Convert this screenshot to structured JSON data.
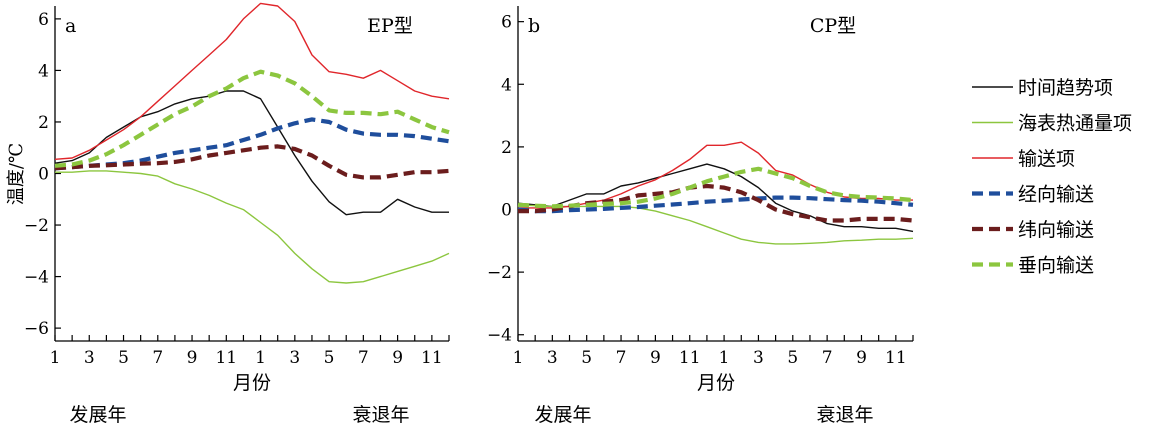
{
  "ylabel": "温度/℃",
  "xlabel": "月份",
  "year_labels": {
    "start": "发展年",
    "end": "衰退年"
  },
  "legend": [
    {
      "name": "时间趋势项",
      "color": "#111111",
      "dashed": false
    },
    {
      "name": "海表热通量项",
      "color": "#8cc63f",
      "dashed": false
    },
    {
      "name": "输送项",
      "color": "#e0262b",
      "dashed": false
    },
    {
      "name": "经向输送",
      "color": "#1f4e9c",
      "dashed": true
    },
    {
      "name": "纬向输送",
      "color": "#6b1d1d",
      "dashed": true
    },
    {
      "name": "垂向输送",
      "color": "#8cc63f",
      "dashed": true
    }
  ],
  "x_ticks": [
    "1",
    "3",
    "5",
    "7",
    "9",
    "11",
    "1",
    "3",
    "5",
    "7",
    "9",
    "11"
  ],
  "chart_data": [
    {
      "type": "line",
      "panel": "a",
      "title": "EP型",
      "ylim": [
        -6.5,
        6.5
      ],
      "yticks": [
        -6,
        -4,
        -2,
        0,
        2,
        4,
        6
      ],
      "ytick_labels": [
        "−6",
        "−4",
        "−2",
        "0",
        "2",
        "4",
        "6"
      ],
      "x_range": [
        1,
        24
      ],
      "x": [
        1,
        2,
        3,
        4,
        5,
        6,
        7,
        8,
        9,
        10,
        11,
        12,
        13,
        14,
        15,
        16,
        17,
        18,
        19,
        20,
        21,
        22,
        23,
        24
      ],
      "series": [
        {
          "name": "时间趋势项",
          "values": [
            0.4,
            0.5,
            0.8,
            1.4,
            1.8,
            2.2,
            2.4,
            2.7,
            2.9,
            3.0,
            3.2,
            3.2,
            2.9,
            1.8,
            0.7,
            -0.3,
            -1.1,
            -1.6,
            -1.5,
            -1.5,
            -1.0,
            -1.3,
            -1.5,
            -1.5
          ]
        },
        {
          "name": "海表热通量项",
          "values": [
            0.05,
            0.05,
            0.1,
            0.1,
            0.05,
            0.0,
            -0.1,
            -0.4,
            -0.6,
            -0.85,
            -1.15,
            -1.4,
            -1.9,
            -2.4,
            -3.1,
            -3.7,
            -4.2,
            -4.25,
            -4.2,
            -4.0,
            -3.8,
            -3.6,
            -3.4,
            -3.1
          ]
        },
        {
          "name": "输送项",
          "values": [
            0.55,
            0.6,
            0.9,
            1.3,
            1.7,
            2.2,
            2.8,
            3.4,
            4.0,
            4.6,
            5.2,
            6.0,
            6.6,
            6.5,
            5.9,
            4.6,
            3.95,
            3.85,
            3.7,
            4.0,
            3.6,
            3.2,
            3.0,
            2.9
          ]
        },
        {
          "name": "经向输送",
          "values": [
            0.2,
            0.25,
            0.3,
            0.35,
            0.4,
            0.5,
            0.65,
            0.8,
            0.9,
            1.0,
            1.1,
            1.3,
            1.5,
            1.75,
            1.95,
            2.1,
            2.0,
            1.7,
            1.55,
            1.5,
            1.5,
            1.45,
            1.35,
            1.25
          ]
        },
        {
          "name": "纬向输送",
          "values": [
            0.2,
            0.25,
            0.3,
            0.32,
            0.35,
            0.38,
            0.4,
            0.45,
            0.55,
            0.7,
            0.8,
            0.9,
            1.0,
            1.05,
            0.95,
            0.7,
            0.3,
            -0.05,
            -0.15,
            -0.15,
            -0.05,
            0.05,
            0.05,
            0.1
          ]
        },
        {
          "name": "垂向输送",
          "values": [
            0.3,
            0.35,
            0.5,
            0.75,
            1.1,
            1.5,
            1.9,
            2.3,
            2.6,
            3.0,
            3.3,
            3.7,
            3.95,
            3.8,
            3.5,
            3.0,
            2.45,
            2.35,
            2.35,
            2.3,
            2.4,
            2.1,
            1.8,
            1.6
          ]
        }
      ]
    },
    {
      "type": "line",
      "panel": "b",
      "title": "CP型",
      "ylim": [
        -4.2,
        6.5
      ],
      "yticks": [
        -4,
        -2,
        0,
        2,
        4,
        6
      ],
      "ytick_labels": [
        "−4",
        "−2",
        "0",
        "2",
        "4",
        "6"
      ],
      "x_range": [
        1,
        24
      ],
      "x": [
        1,
        2,
        3,
        4,
        5,
        6,
        7,
        8,
        9,
        10,
        11,
        12,
        13,
        14,
        15,
        16,
        17,
        18,
        19,
        20,
        21,
        22,
        23,
        24
      ],
      "series": [
        {
          "name": "时间趋势项",
          "values": [
            0.2,
            0.15,
            0.1,
            0.3,
            0.5,
            0.5,
            0.75,
            0.85,
            1.0,
            1.15,
            1.3,
            1.45,
            1.3,
            1.05,
            0.7,
            0.2,
            -0.05,
            -0.2,
            -0.45,
            -0.55,
            -0.55,
            -0.6,
            -0.6,
            -0.7
          ]
        },
        {
          "name": "海表热通量项",
          "values": [
            0.15,
            0.12,
            0.1,
            0.1,
            0.1,
            0.1,
            0.1,
            0.05,
            -0.05,
            -0.2,
            -0.35,
            -0.55,
            -0.75,
            -0.95,
            -1.05,
            -1.1,
            -1.1,
            -1.08,
            -1.05,
            -1.0,
            -0.98,
            -0.95,
            -0.95,
            -0.92
          ]
        },
        {
          "name": "输送项",
          "values": [
            0.05,
            0.05,
            0.05,
            0.1,
            0.2,
            0.3,
            0.5,
            0.75,
            0.95,
            1.25,
            1.6,
            2.05,
            2.05,
            2.15,
            1.8,
            1.25,
            1.1,
            0.8,
            0.55,
            0.4,
            0.35,
            0.35,
            0.3,
            0.3
          ]
        },
        {
          "name": "经向输送",
          "values": [
            0.0,
            -0.05,
            -0.05,
            -0.02,
            0.0,
            0.02,
            0.05,
            0.08,
            0.12,
            0.16,
            0.2,
            0.25,
            0.28,
            0.32,
            0.35,
            0.38,
            0.38,
            0.36,
            0.33,
            0.3,
            0.28,
            0.25,
            0.2,
            0.15
          ]
        },
        {
          "name": "纬向输送",
          "values": [
            -0.05,
            -0.05,
            0.0,
            0.1,
            0.2,
            0.25,
            0.3,
            0.45,
            0.5,
            0.55,
            0.7,
            0.75,
            0.7,
            0.55,
            0.3,
            0.0,
            -0.15,
            -0.25,
            -0.35,
            -0.35,
            -0.3,
            -0.3,
            -0.3,
            -0.35
          ]
        },
        {
          "name": "垂向输送",
          "values": [
            0.15,
            0.12,
            0.1,
            0.12,
            0.15,
            0.18,
            0.2,
            0.25,
            0.35,
            0.5,
            0.7,
            0.9,
            1.05,
            1.2,
            1.3,
            1.15,
            1.0,
            0.75,
            0.55,
            0.45,
            0.4,
            0.38,
            0.35,
            0.3
          ]
        }
      ]
    }
  ]
}
